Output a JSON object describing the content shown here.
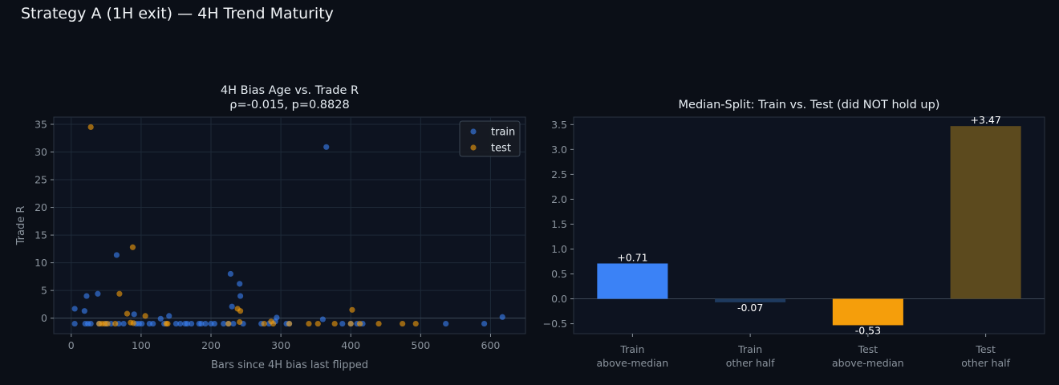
{
  "suptitle": "Strategy A (1H exit) — 4H Trend Maturity",
  "chart_data": [
    {
      "type": "scatter",
      "title": "4H Bias Age vs. Trade R",
      "subtitle": "ρ=-0.015, p=0.8828",
      "xlabel": "Bars since 4H bias last flipped",
      "ylabel": "Trade R",
      "xlim": [
        -25,
        650
      ],
      "ylim": [
        -2.8,
        36.3
      ],
      "xticks": [
        0,
        100,
        200,
        300,
        400,
        500,
        600
      ],
      "yticks": [
        0,
        5,
        10,
        15,
        20,
        25,
        30,
        35
      ],
      "grid": true,
      "legend_position": "top-right",
      "colors": {
        "train": "#3b82f6",
        "test": "#f59e0b"
      },
      "series": [
        {
          "name": "train",
          "points": [
            [
              5,
              1.7
            ],
            [
              5,
              -1
            ],
            [
              19,
              1.3
            ],
            [
              20,
              -1
            ],
            [
              22,
              4
            ],
            [
              24,
              -1
            ],
            [
              28,
              -1
            ],
            [
              38,
              4.4
            ],
            [
              40,
              -1
            ],
            [
              50,
              -1
            ],
            [
              57,
              -1
            ],
            [
              65,
              11.4
            ],
            [
              68,
              -1
            ],
            [
              75,
              -1
            ],
            [
              90,
              0.7
            ],
            [
              93,
              -1
            ],
            [
              97,
              -1
            ],
            [
              101,
              -1
            ],
            [
              112,
              -1
            ],
            [
              117,
              -1
            ],
            [
              128,
              -0.1
            ],
            [
              133,
              -1
            ],
            [
              140,
              0.4
            ],
            [
              150,
              -1
            ],
            [
              156,
              -1
            ],
            [
              163,
              -1
            ],
            [
              166,
              -1
            ],
            [
              172,
              -1
            ],
            [
              183,
              -1
            ],
            [
              186,
              -1
            ],
            [
              192,
              -1
            ],
            [
              200,
              -1
            ],
            [
              205,
              -1
            ],
            [
              218,
              -1
            ],
            [
              225,
              -1
            ],
            [
              228,
              8
            ],
            [
              230,
              2.1
            ],
            [
              232,
              -1
            ],
            [
              241,
              6.2
            ],
            [
              242,
              4
            ],
            [
              246,
              -1
            ],
            [
              272,
              -1
            ],
            [
              283,
              -1
            ],
            [
              292,
              -0.6
            ],
            [
              294,
              0.1
            ],
            [
              308,
              -1
            ],
            [
              312,
              -1
            ],
            [
              360,
              -0.2
            ],
            [
              365,
              30.9
            ],
            [
              388,
              -1
            ],
            [
              400,
              -1
            ],
            [
              409,
              -1
            ],
            [
              417,
              -1
            ],
            [
              536,
              -1
            ],
            [
              591,
              -1
            ],
            [
              617,
              0.2
            ]
          ]
        },
        {
          "name": "test",
          "points": [
            [
              28,
              34.5
            ],
            [
              40,
              -1
            ],
            [
              44,
              -1
            ],
            [
              48,
              -1
            ],
            [
              52,
              -1
            ],
            [
              63,
              -1
            ],
            [
              69,
              4.4
            ],
            [
              80,
              0.8
            ],
            [
              85,
              -0.8
            ],
            [
              88,
              12.8
            ],
            [
              89,
              -0.9
            ],
            [
              106,
              0.4
            ],
            [
              136,
              -1
            ],
            [
              138,
              -1
            ],
            [
              225,
              -1
            ],
            [
              238,
              1.7
            ],
            [
              241,
              -0.7
            ],
            [
              242,
              1.3
            ],
            [
              276,
              -1
            ],
            [
              286,
              -0.6
            ],
            [
              289,
              -1
            ],
            [
              312,
              -1
            ],
            [
              340,
              -1
            ],
            [
              353,
              -1
            ],
            [
              377,
              -1
            ],
            [
              400,
              -1
            ],
            [
              402,
              1.5
            ],
            [
              413,
              -1
            ],
            [
              440,
              -1
            ],
            [
              474,
              -1
            ],
            [
              493,
              -1
            ]
          ]
        }
      ]
    },
    {
      "type": "bar",
      "title": "Median-Split: Train vs. Test (did NOT hold up)",
      "categories": [
        "Train\nabove-median",
        "Train\nother half",
        "Test\nabove-median",
        "Test\nother half"
      ],
      "values": [
        0.71,
        -0.07,
        -0.53,
        3.47
      ],
      "value_labels": [
        "+0.71",
        "-0.07",
        "-0.53",
        "+3.47"
      ],
      "bar_colors": [
        "#3b82f6",
        "#1e3a5f",
        "#f59e0b",
        "#5c4a1e"
      ],
      "ylim": [
        -0.7,
        3.65
      ],
      "yticks": [
        -0.5,
        0.0,
        0.5,
        1.0,
        1.5,
        2.0,
        2.5,
        3.0,
        3.5
      ],
      "ytick_labels": [
        "−0.5",
        "0.0",
        "0.5",
        "1.0",
        "1.5",
        "2.0",
        "2.5",
        "3.0",
        "3.5"
      ],
      "grid": false
    }
  ]
}
